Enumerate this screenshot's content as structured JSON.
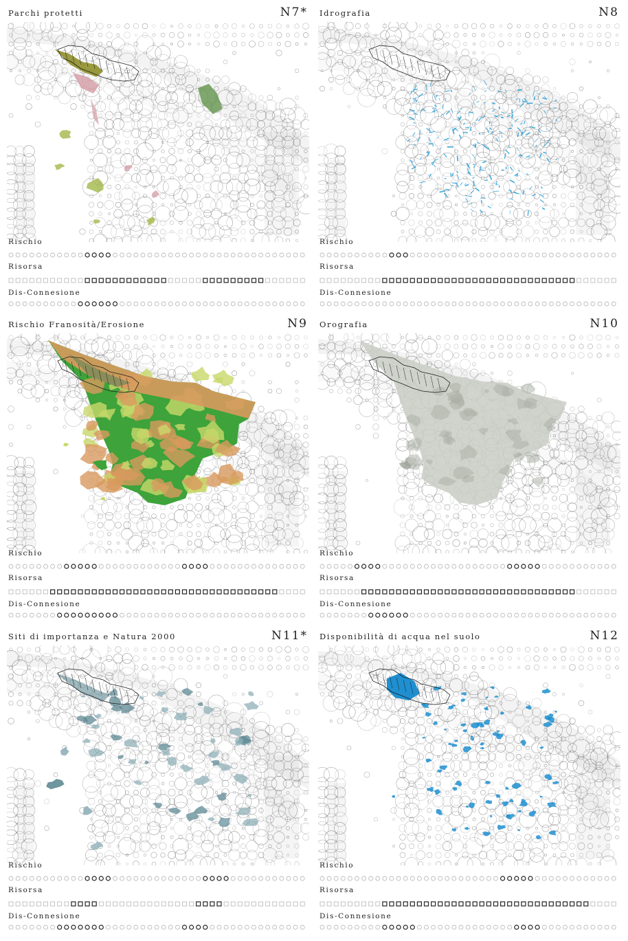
{
  "panels": [
    {
      "id": "n7",
      "title": "Parchi protetti",
      "code": "N7*",
      "overlay": "parchi",
      "overlay_colors": [
        "#8a8a1e",
        "#d6a0a8",
        "#6b9a56",
        "#a3b84a"
      ],
      "labels": {
        "rischio": "Rischio",
        "risorsa": "Risorsa",
        "connessione": "Dis-Connesione"
      },
      "rows": {
        "rischio": [
          [
            11,
            14
          ]
        ],
        "risorsa": [
          [
            11,
            22
          ],
          [
            28,
            36
          ]
        ],
        "connessione": [
          [
            10,
            15
          ]
        ]
      }
    },
    {
      "id": "n8",
      "title": "Idrografia",
      "code": "N8",
      "overlay": "idrografia",
      "overlay_colors": [
        "#2a9fd6"
      ],
      "labels": {
        "rischio": "Rischio",
        "risorsa": "Risorsa",
        "connessione": "Dis-Connesione"
      },
      "rows": {
        "rischio": [
          [
            10,
            12
          ]
        ],
        "risorsa": [
          [
            9,
            36
          ]
        ],
        "connessione": []
      }
    },
    {
      "id": "n9",
      "title": "Rischio Franosità/Erosione",
      "code": "N9",
      "overlay": "frane",
      "overlay_colors": [
        "#3da33a",
        "#c8d86a",
        "#d89a5e",
        "#7a8a5a"
      ],
      "labels": {
        "rischio": "Rischio",
        "risorsa": "Risorsa",
        "connessione": "Dis-Connesione"
      },
      "rows": {
        "rischio": [
          [
            8,
            12
          ],
          [
            25,
            28
          ]
        ],
        "risorsa": [
          [
            6,
            38
          ]
        ],
        "connessione": [
          [
            7,
            15
          ]
        ]
      }
    },
    {
      "id": "n10",
      "title": "Orografia",
      "code": "N10",
      "overlay": "orografia",
      "overlay_colors": [
        "#c9ccc4"
      ],
      "labels": {
        "rischio": "Rischio",
        "risorsa": "Risorsa",
        "connessione": "Dis-Connesione"
      },
      "rows": {
        "rischio": [
          [
            5,
            8
          ],
          [
            27,
            31
          ]
        ],
        "risorsa": [
          [
            6,
            36
          ]
        ],
        "connessione": [
          [
            7,
            12
          ]
        ]
      }
    },
    {
      "id": "n11",
      "title": "Siti di importanza e Natura 2000",
      "code": "N11*",
      "overlay": "natura",
      "overlay_colors": [
        "#8fb0b8",
        "#5f8a94"
      ],
      "labels": {
        "rischio": "Rischio",
        "risorsa": "Risorsa",
        "connessione": "Dis-Connesione"
      },
      "rows": {
        "rischio": [
          [
            11,
            14
          ],
          [
            28,
            31
          ]
        ],
        "risorsa": [
          [
            9,
            12
          ],
          [
            27,
            30
          ]
        ],
        "connessione": [
          [
            7,
            13
          ],
          [
            25,
            28
          ]
        ]
      }
    },
    {
      "id": "n12",
      "title": "Disponibilità di acqua nel suolo",
      "code": "N12",
      "overlay": "acqua",
      "overlay_colors": [
        "#1f8fd0"
      ],
      "labels": {
        "rischio": "Rischio",
        "risorsa": "Risorsa",
        "connessione": "Dis-Connesione"
      },
      "rows": {
        "rischio": [
          [
            26,
            30
          ]
        ],
        "risorsa": [
          [
            9,
            38
          ]
        ],
        "connessione": [
          [
            9,
            13
          ],
          [
            28,
            31
          ]
        ]
      }
    }
  ]
}
